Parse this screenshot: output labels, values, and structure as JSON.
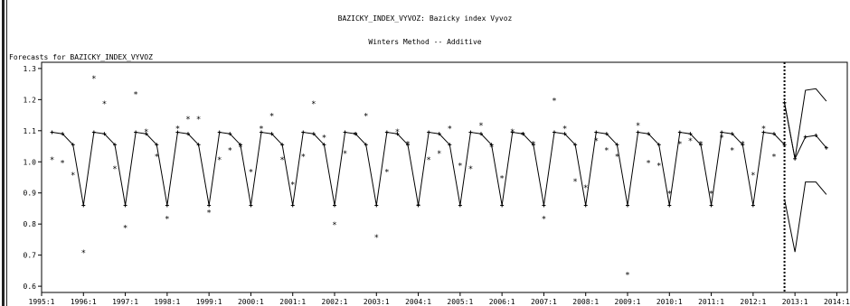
{
  "window": {
    "title": "BAZICKY_INDEX_VYVOZ: Bazicky index Vyvoz",
    "subtitle": "Winters Method -- Additive",
    "header": "Forecasts for BAZICKY_INDEX_VYVOZ"
  },
  "chart_data": {
    "type": "line",
    "title": "BAZICKY_INDEX_VYVOZ: Bazicky index Vyvoz",
    "subtitle": "Winters Method -- Additive",
    "xlabel": "",
    "ylabel": "",
    "x_ticks": [
      "1995:1",
      "1996:1",
      "1997:1",
      "1998:1",
      "1999:1",
      "2000:1",
      "2001:1",
      "2002:1",
      "2003:1",
      "2004:1",
      "2005:1",
      "2006:1",
      "2007:1",
      "2008:1",
      "2009:1",
      "2010:1",
      "2011:1",
      "2012:1",
      "2013:1",
      "2014:1"
    ],
    "y_ticks": [
      "0.6",
      "0.7",
      "0.8",
      "0.9",
      "1.0",
      "1.1",
      "1.2",
      "1.3"
    ],
    "xlim": [
      "1995:1",
      "2014:2"
    ],
    "ylim": [
      0.58,
      1.32
    ],
    "forecast_start": "2012:4",
    "seasonal_pattern": [
      1.095,
      1.09,
      1.055,
      0.86
    ],
    "actual": [
      1.01,
      1.0,
      0.96,
      0.71,
      1.27,
      1.19,
      0.98,
      0.79,
      1.22,
      1.1,
      1.02,
      0.82,
      1.11,
      1.14,
      1.14,
      0.84,
      1.01,
      1.04,
      1.05,
      0.97,
      1.11,
      1.15,
      1.01,
      0.93,
      1.02,
      1.19,
      1.08,
      0.8,
      1.03,
      1.09,
      1.15,
      0.76,
      0.97,
      1.1,
      1.06,
      0.86,
      1.01,
      1.03,
      1.11,
      0.99,
      0.98,
      1.12,
      1.05,
      0.95,
      1.1,
      1.09,
      1.06,
      0.82,
      1.2,
      1.11,
      0.94,
      0.92,
      1.07,
      1.04,
      1.02,
      0.64,
      1.12,
      1.0,
      0.99,
      0.9,
      1.06,
      1.07,
      1.06,
      0.9,
      1.08,
      1.04,
      1.06,
      0.96,
      1.11,
      1.02
    ],
    "forecast": [
      1.19,
      1.01,
      1.08,
      1.085,
      1.045
    ],
    "upper": [
      1.19,
      1.01,
      1.23,
      1.235,
      1.195
    ],
    "lower": [
      0.88,
      0.71,
      0.935,
      0.935,
      0.895
    ]
  }
}
